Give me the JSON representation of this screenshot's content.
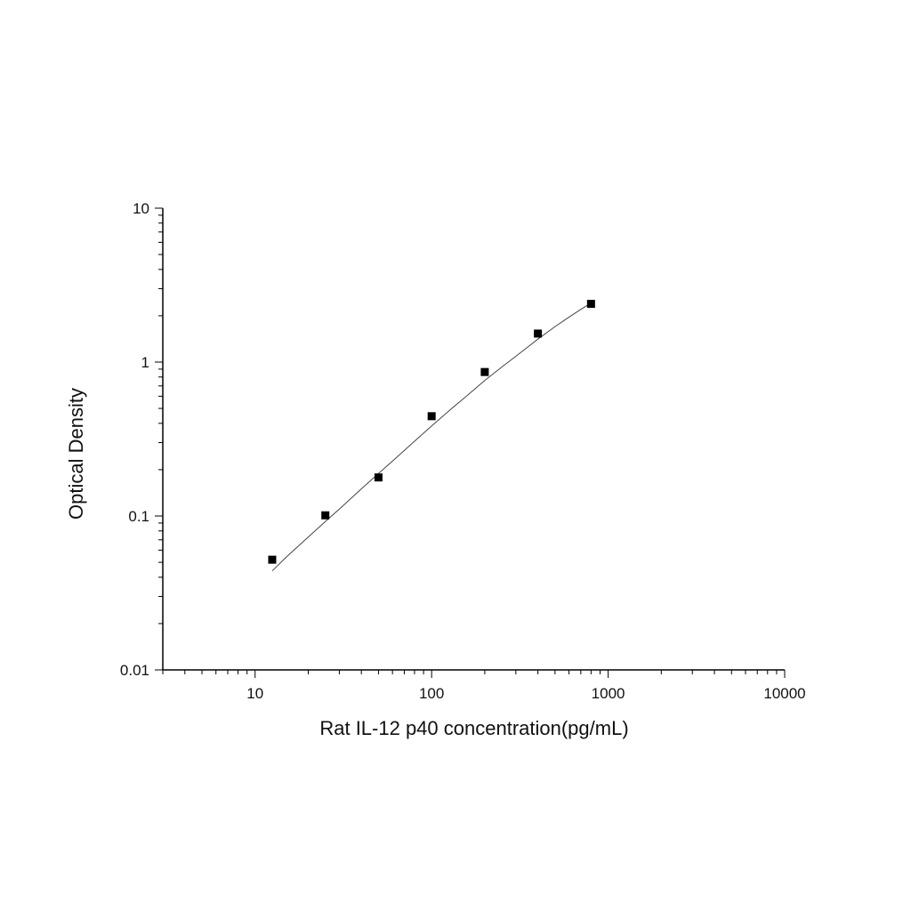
{
  "chart_data": {
    "type": "scatter",
    "title": "",
    "xlabel": "Rat IL-12 p40 concentration(pg/mL)",
    "ylabel": "Optical Density",
    "xscale": "log",
    "yscale": "log",
    "xlim": [
      3,
      10000
    ],
    "ylim": [
      0.01,
      10
    ],
    "x_ticks": [
      10,
      100,
      1000,
      10000
    ],
    "x_tick_labels": [
      "10",
      "100",
      "1000",
      "10000"
    ],
    "y_ticks": [
      0.01,
      0.1,
      1,
      10
    ],
    "y_tick_labels": [
      "0.01",
      "0.1",
      "1",
      "10"
    ],
    "grid": false,
    "legend": "none",
    "series": [
      {
        "x": [
          12.5,
          25,
          50,
          100,
          200,
          400,
          800
        ],
        "y": [
          0.052,
          0.101,
          0.178,
          0.445,
          0.862,
          1.532,
          2.39
        ],
        "marker": "square",
        "color": "#000000"
      }
    ],
    "fit_curve": {
      "x": [
        12.5,
        15,
        20,
        25,
        30,
        40,
        50,
        60,
        80,
        100,
        130,
        160,
        200,
        250,
        300,
        400,
        500,
        600,
        700,
        800
      ],
      "y": [
        0.044,
        0.054,
        0.073,
        0.092,
        0.111,
        0.15,
        0.189,
        0.227,
        0.306,
        0.385,
        0.5,
        0.61,
        0.76,
        0.93,
        1.09,
        1.41,
        1.7,
        1.96,
        2.2,
        2.42
      ],
      "color": "#444444"
    }
  }
}
